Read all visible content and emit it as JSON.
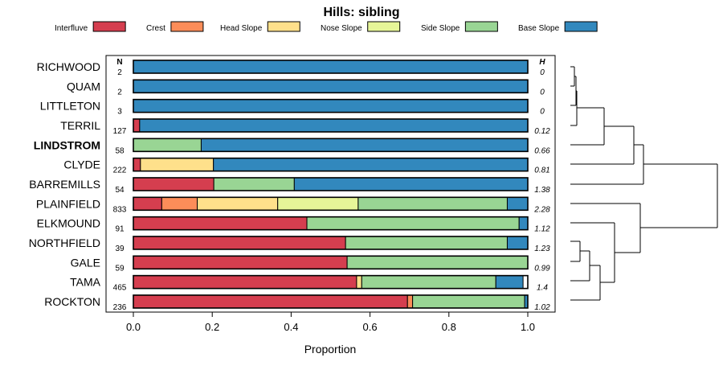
{
  "chart_data": {
    "type": "bar",
    "stacked": true,
    "orientation": "horizontal",
    "title": "Hills: sibling",
    "xlabel": "Proportion",
    "ylabel": "",
    "xlim": [
      0,
      1
    ],
    "xticks": [
      "0.0",
      "0.2",
      "0.4",
      "0.6",
      "0.8",
      "1.0"
    ],
    "n_header": "N",
    "h_header": "H",
    "highlight": "LINDSTROM",
    "legend_position": "top",
    "series": [
      {
        "name": "Interfluve",
        "color": "#D53E4F"
      },
      {
        "name": "Crest",
        "color": "#FC8D59"
      },
      {
        "name": "Head Slope",
        "color": "#FEE08B"
      },
      {
        "name": "Nose Slope",
        "color": "#E6F598"
      },
      {
        "name": "Side Slope",
        "color": "#99D594"
      },
      {
        "name": "Base Slope",
        "color": "#3288BD"
      }
    ],
    "categories": [
      {
        "name": "RICHWOOD",
        "n": "2",
        "h": "0",
        "values": [
          0,
          0,
          0,
          0,
          0,
          1.0
        ]
      },
      {
        "name": "QUAM",
        "n": "2",
        "h": "0",
        "values": [
          0,
          0,
          0,
          0,
          0,
          1.0
        ]
      },
      {
        "name": "LITTLETON",
        "n": "3",
        "h": "0",
        "values": [
          0,
          0,
          0,
          0,
          0,
          1.0
        ]
      },
      {
        "name": "TERRIL",
        "n": "127",
        "h": "0.12",
        "values": [
          0.016,
          0,
          0,
          0,
          0,
          0.984
        ]
      },
      {
        "name": "LINDSTROM",
        "n": "58",
        "h": "0.66",
        "values": [
          0,
          0,
          0,
          0,
          0.172,
          0.828
        ]
      },
      {
        "name": "CLYDE",
        "n": "222",
        "h": "0.81",
        "values": [
          0.018,
          0,
          0.185,
          0,
          0,
          0.797
        ]
      },
      {
        "name": "BARREMILLS",
        "n": "54",
        "h": "1.38",
        "values": [
          0.204,
          0,
          0,
          0,
          0.204,
          0.592
        ]
      },
      {
        "name": "PLAINFIELD",
        "n": "833",
        "h": "2.28",
        "values": [
          0.072,
          0.09,
          0.204,
          0.204,
          0.378,
          0.052
        ]
      },
      {
        "name": "ELKMOUND",
        "n": "91",
        "h": "1.12",
        "values": [
          0.44,
          0,
          0,
          0,
          0.538,
          0.022
        ]
      },
      {
        "name": "NORTHFIELD",
        "n": "39",
        "h": "1.23",
        "values": [
          0.538,
          0,
          0,
          0,
          0.41,
          0.052
        ]
      },
      {
        "name": "GALE",
        "n": "59",
        "h": "0.99",
        "values": [
          0.542,
          0,
          0,
          0,
          0.458,
          0
        ]
      },
      {
        "name": "TAMA",
        "n": "465",
        "h": "1.4",
        "values": [
          0.566,
          0,
          0.013,
          0,
          0.34,
          0.069
        ]
      },
      {
        "name": "ROCKTON",
        "n": "236",
        "h": "1.02",
        "values": [
          0.695,
          0.013,
          0,
          0,
          0.284,
          0.008
        ]
      }
    ]
  }
}
